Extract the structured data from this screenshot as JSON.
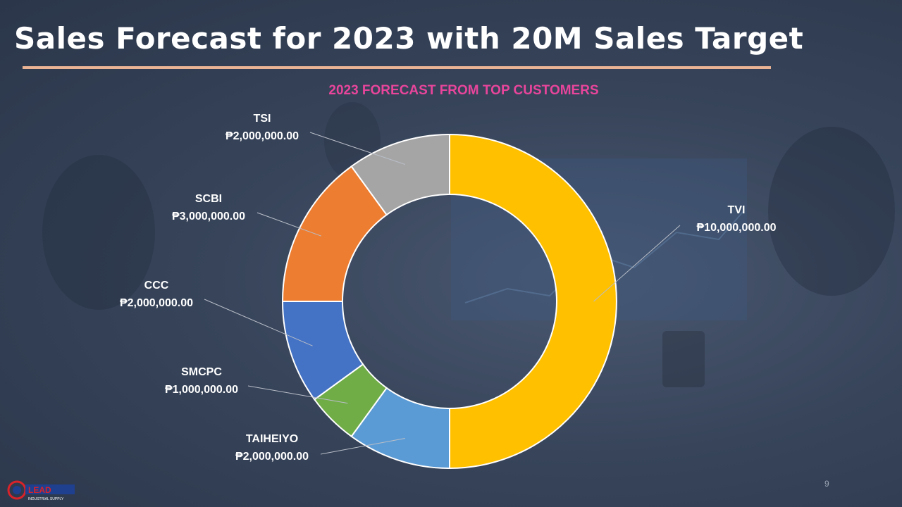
{
  "title": "Sales Forecast for 2023 with 20M Sales Target",
  "page_number": "9",
  "logo": {
    "text": "LEAD",
    "subtext": "INDUSTRIAL SUPPLY"
  },
  "chart_data": {
    "type": "pie",
    "variant": "doughnut",
    "title": "2023 FORECAST FROM TOP CUSTOMERS",
    "categories": [
      "TVI",
      "TAIHEIYO",
      "SMCPC",
      "CCC",
      "SCBI",
      "TSI"
    ],
    "values": [
      10000000,
      2000000,
      1000000,
      2000000,
      3000000,
      2000000
    ],
    "value_labels": [
      "₱10,000,000.00",
      "₱2,000,000.00",
      "₱1,000,000.00",
      "₱2,000,000.00",
      "₱3,000,000.00",
      "₱2,000,000.00"
    ],
    "colors": [
      "#ffc000",
      "#5b9bd5",
      "#70ad47",
      "#4472c4",
      "#ed7d31",
      "#a5a5a5"
    ],
    "start_angle": "12 o'clock",
    "direction": "clockwise",
    "legend": "none"
  }
}
